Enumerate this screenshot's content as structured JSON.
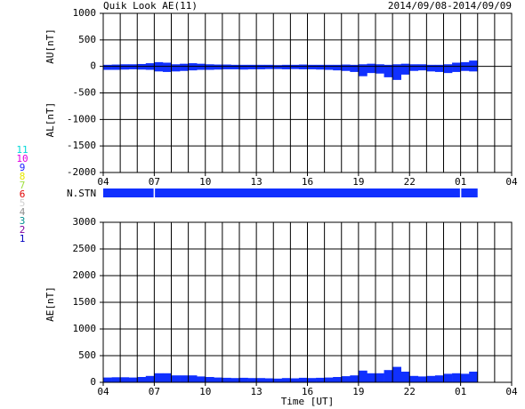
{
  "chart_data": [
    {
      "type": "bar",
      "title": "Quik Look AE(11)",
      "subtitle": "2014/09/08-2014/09/09",
      "ylabels": [
        "AU[nT]",
        "AL[nT]"
      ],
      "x": [
        0,
        0.5,
        1,
        1.5,
        2,
        2.5,
        3,
        3.5,
        4,
        4.5,
        5,
        5.5,
        6,
        6.5,
        7,
        7.5,
        8,
        8.5,
        9,
        9.5,
        10,
        10.5,
        11,
        11.5,
        12,
        12.5,
        13,
        13.5,
        14,
        14.5,
        15,
        15.5,
        16,
        16.5,
        17,
        17.5,
        18,
        18.5,
        19,
        19.5,
        20,
        20.5,
        21,
        21.5
      ],
      "series": [
        {
          "color": "#1030ff",
          "values": [
            30,
            35,
            40,
            40,
            45,
            60,
            80,
            70,
            40,
            50,
            60,
            50,
            40,
            35,
            35,
            30,
            30,
            30,
            30,
            30,
            25,
            30,
            30,
            35,
            30,
            30,
            30,
            30,
            35,
            30,
            40,
            50,
            40,
            30,
            40,
            50,
            40,
            40,
            30,
            30,
            40,
            70,
            80,
            110
          ]
        },
        {
          "color": "#1030ff",
          "values": [
            -60,
            -60,
            -55,
            -50,
            -55,
            -60,
            -90,
            -100,
            -90,
            -80,
            -70,
            -60,
            -60,
            -55,
            -50,
            -50,
            -55,
            -50,
            -50,
            -45,
            -45,
            -50,
            -45,
            -50,
            -50,
            -55,
            -60,
            -70,
            -80,
            -100,
            -180,
            -120,
            -130,
            -200,
            -250,
            -150,
            -80,
            -70,
            -90,
            -100,
            -120,
            -100,
            -80,
            -90
          ]
        }
      ],
      "xlim": [
        0,
        24
      ],
      "xticks": [
        {
          "value": 0,
          "label": "04"
        },
        {
          "value": 3,
          "label": "07"
        },
        {
          "value": 6,
          "label": "10"
        },
        {
          "value": 9,
          "label": "13"
        },
        {
          "value": 12,
          "label": "16"
        },
        {
          "value": 15,
          "label": "19"
        },
        {
          "value": 18,
          "label": "22"
        },
        {
          "value": 21,
          "label": "01"
        },
        {
          "value": 24,
          "label": "04"
        }
      ],
      "xgrid": [
        0,
        1,
        2,
        3,
        4,
        5,
        6,
        7,
        8,
        9,
        10,
        11,
        12,
        13,
        14,
        15,
        16,
        17,
        18,
        19,
        20,
        21,
        22,
        23,
        24
      ],
      "ylim": [
        -2000,
        1000
      ],
      "yticks": [
        -2000,
        -1500,
        -1000,
        -500,
        0,
        500,
        1000
      ]
    },
    {
      "type": "bar",
      "ylabel": "AE[nT]",
      "xlabel": "Time [UT]",
      "x": [
        0,
        0.5,
        1,
        1.5,
        2,
        2.5,
        3,
        3.5,
        4,
        4.5,
        5,
        5.5,
        6,
        6.5,
        7,
        7.5,
        8,
        8.5,
        9,
        9.5,
        10,
        10.5,
        11,
        11.5,
        12,
        12.5,
        13,
        13.5,
        14,
        14.5,
        15,
        15.5,
        16,
        16.5,
        17,
        17.5,
        18,
        18.5,
        19,
        19.5,
        20,
        20.5,
        21,
        21.5
      ],
      "series": [
        {
          "color": "#1030ff",
          "values": [
            90,
            95,
            95,
            90,
            100,
            120,
            170,
            170,
            130,
            130,
            130,
            110,
            100,
            90,
            85,
            80,
            85,
            80,
            80,
            75,
            70,
            80,
            75,
            85,
            80,
            85,
            90,
            100,
            115,
            130,
            220,
            170,
            170,
            230,
            290,
            200,
            120,
            110,
            120,
            130,
            160,
            170,
            160,
            200
          ]
        }
      ],
      "xlim": [
        0,
        24
      ],
      "xticks": [
        {
          "value": 0,
          "label": "04"
        },
        {
          "value": 3,
          "label": "07"
        },
        {
          "value": 6,
          "label": "10"
        },
        {
          "value": 9,
          "label": "13"
        },
        {
          "value": 12,
          "label": "16"
        },
        {
          "value": 15,
          "label": "19"
        },
        {
          "value": 18,
          "label": "22"
        },
        {
          "value": 21,
          "label": "01"
        },
        {
          "value": 24,
          "label": "04"
        }
      ],
      "xgrid": [
        0,
        1,
        2,
        3,
        4,
        5,
        6,
        7,
        8,
        9,
        10,
        11,
        12,
        13,
        14,
        15,
        16,
        17,
        18,
        19,
        20,
        21,
        22,
        23,
        24
      ],
      "ylim": [
        0,
        3000
      ],
      "yticks": [
        0,
        500,
        1000,
        1500,
        2000,
        2500,
        3000
      ]
    }
  ],
  "stations": {
    "label": "N.STN",
    "color": "#1030ff",
    "legend": [
      {
        "label": "11",
        "color": "#00d8d8"
      },
      {
        "label": "10",
        "color": "#e000e0"
      },
      {
        "label": "9",
        "color": "#2020ff"
      },
      {
        "label": "8",
        "color": "#e8e800"
      },
      {
        "label": "7",
        "color": "#a0e040"
      },
      {
        "label": "6",
        "color": "#e00000"
      },
      {
        "label": "5",
        "color": "#d0d0d0"
      },
      {
        "label": "4",
        "color": "#909090"
      },
      {
        "label": "3",
        "color": "#009090"
      },
      {
        "label": "2",
        "color": "#8000a0"
      },
      {
        "label": "1",
        "color": "#0000c0"
      }
    ]
  }
}
